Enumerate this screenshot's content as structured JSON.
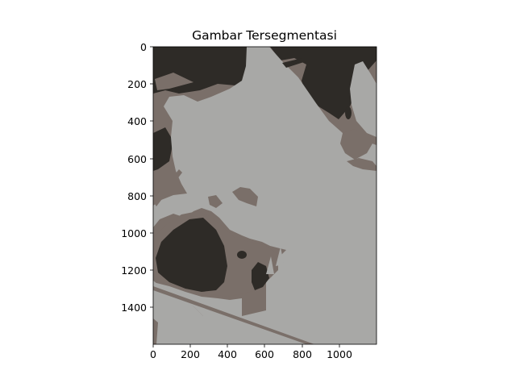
{
  "figure": {
    "title": "Gambar Tersegmentasi"
  },
  "axes": {
    "x_ticks": [
      "0",
      "200",
      "400",
      "600",
      "800",
      "1000"
    ],
    "y_ticks": [
      "0",
      "200",
      "400",
      "600",
      "800",
      "1000",
      "1200",
      "1400"
    ]
  },
  "image": {
    "description_colors": {
      "light": "#a8a8a6",
      "mid": "#7a6f69",
      "dark": "#2e2b27"
    }
  }
}
